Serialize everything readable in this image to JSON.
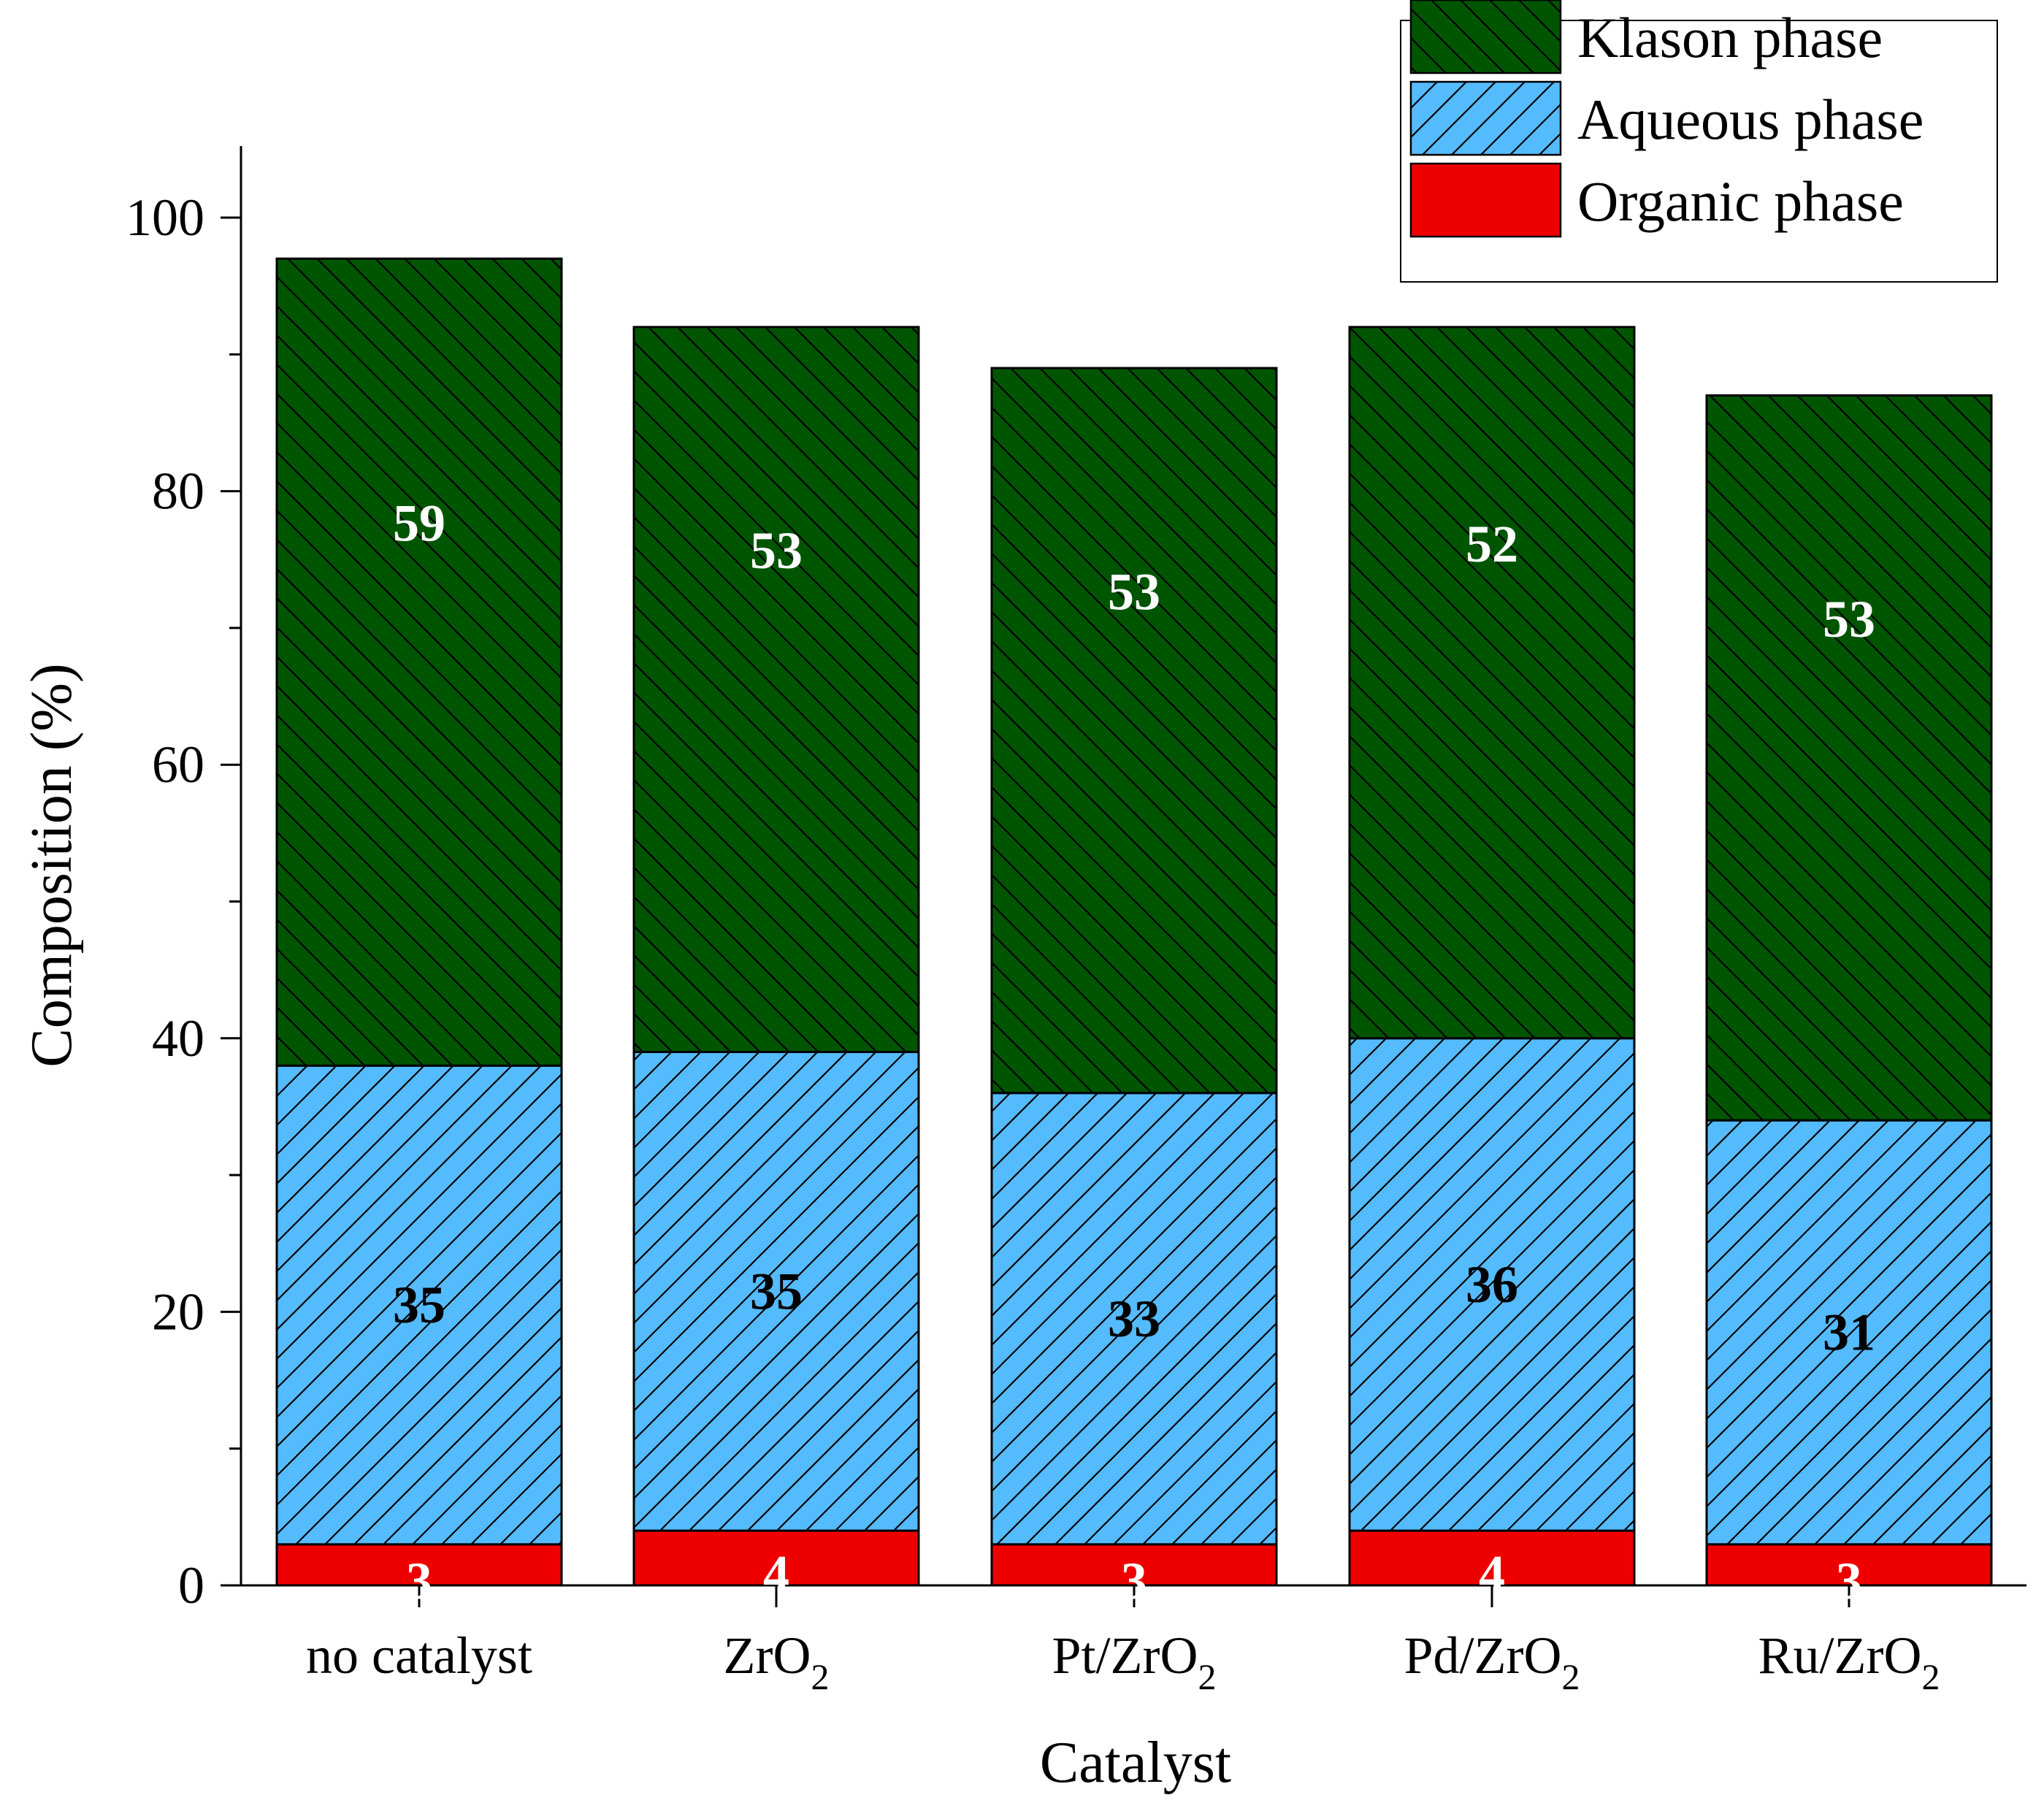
{
  "chart_data": {
    "type": "bar",
    "stacked": true,
    "xlabel": "Catalyst",
    "ylabel": "Composition (%)",
    "ylim": [
      0,
      105
    ],
    "yticks": [
      "0",
      "20",
      "40",
      "60",
      "80",
      "100"
    ],
    "categories": [
      {
        "base": "no catalyst",
        "sub": ""
      },
      {
        "base": "ZrO",
        "sub": "2"
      },
      {
        "base": "Pt/ZrO",
        "sub": "2"
      },
      {
        "base": "Pd/ZrO",
        "sub": "2"
      },
      {
        "base": "Ru/ZrO",
        "sub": "2"
      }
    ],
    "series": [
      {
        "name": "Organic phase",
        "values": [
          3,
          4,
          3,
          4,
          3
        ],
        "color": "#ee0000",
        "label_color": "#ffffff",
        "hatch": "none"
      },
      {
        "name": "Aqueous phase",
        "values": [
          35,
          35,
          33,
          36,
          31
        ],
        "color": "#55bbff",
        "label_color": "#000000",
        "hatch": "forward"
      },
      {
        "name": "Klason phase",
        "values": [
          59,
          53,
          53,
          52,
          53
        ],
        "color": "#005500",
        "label_color": "#ffffff",
        "hatch": "backward"
      }
    ],
    "legend_order": [
      "Klason phase",
      "Aqueous phase",
      "Organic phase"
    ],
    "legend_position": "top-right"
  }
}
